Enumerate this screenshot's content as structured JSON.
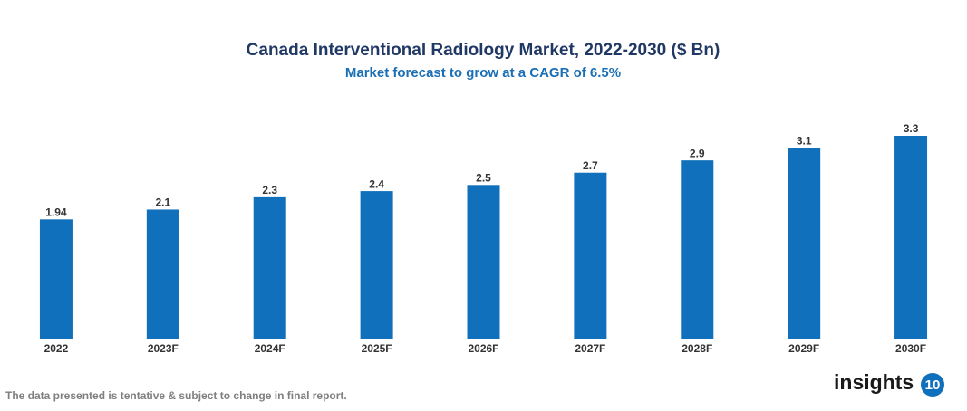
{
  "chart_data": {
    "type": "bar",
    "title": "Canada Interventional Radiology Market, 2022-2030 ($ Bn)",
    "subtitle": "Market forecast to grow at a CAGR of 6.5%",
    "categories": [
      "2022",
      "2023F",
      "2024F",
      "2025F",
      "2026F",
      "2027F",
      "2028F",
      "2029F",
      "2030F"
    ],
    "values": [
      1.94,
      2.1,
      2.3,
      2.4,
      2.5,
      2.7,
      2.9,
      3.1,
      3.3
    ],
    "color": "#1170bb"
  },
  "footnote": "The data presented is tentative & subject to change in final report.",
  "logo": {
    "text": "insights",
    "badge": "10"
  }
}
